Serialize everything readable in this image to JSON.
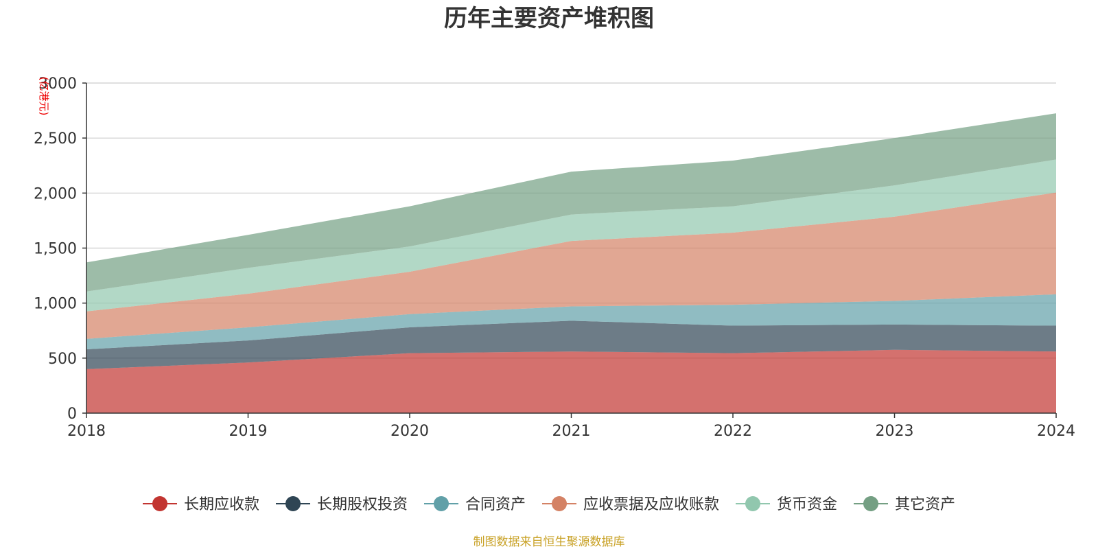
{
  "chart_data": {
    "type": "area",
    "stacked": true,
    "title": "历年主要资产堆积图",
    "unit_label": "(亿港元)",
    "x": [
      "2018",
      "2019",
      "2020",
      "2021",
      "2022",
      "2023",
      "2024"
    ],
    "ylim": [
      0,
      3000
    ],
    "y_ticks": [
      0,
      500,
      1000,
      1500,
      2000,
      2500,
      3000
    ],
    "y_tick_labels": [
      "0",
      "500",
      "1,000",
      "1,500",
      "2,000",
      "2,500",
      "3000"
    ],
    "grid": true,
    "legend_position": "bottom",
    "series": [
      {
        "name": "长期应收款",
        "color": "#c23531",
        "values": [
          400,
          460,
          545,
          560,
          545,
          575,
          560
        ]
      },
      {
        "name": "长期股权投资",
        "color": "#2f4554",
        "values": [
          180,
          200,
          235,
          280,
          250,
          230,
          235
        ]
      },
      {
        "name": "合同资产",
        "color": "#61a0a8",
        "values": [
          95,
          120,
          120,
          130,
          190,
          215,
          285
        ]
      },
      {
        "name": "应收票据及应收账款",
        "color": "#d48265",
        "values": [
          250,
          305,
          385,
          595,
          655,
          765,
          925
        ]
      },
      {
        "name": "货币资金",
        "color": "#91c7ae",
        "values": [
          180,
          235,
          230,
          240,
          240,
          285,
          300
        ]
      },
      {
        "name": "其它资产",
        "color": "#749f83",
        "values": [
          265,
          300,
          365,
          390,
          415,
          430,
          420
        ]
      }
    ],
    "source": "制图数据来自恒生聚源数据库"
  }
}
